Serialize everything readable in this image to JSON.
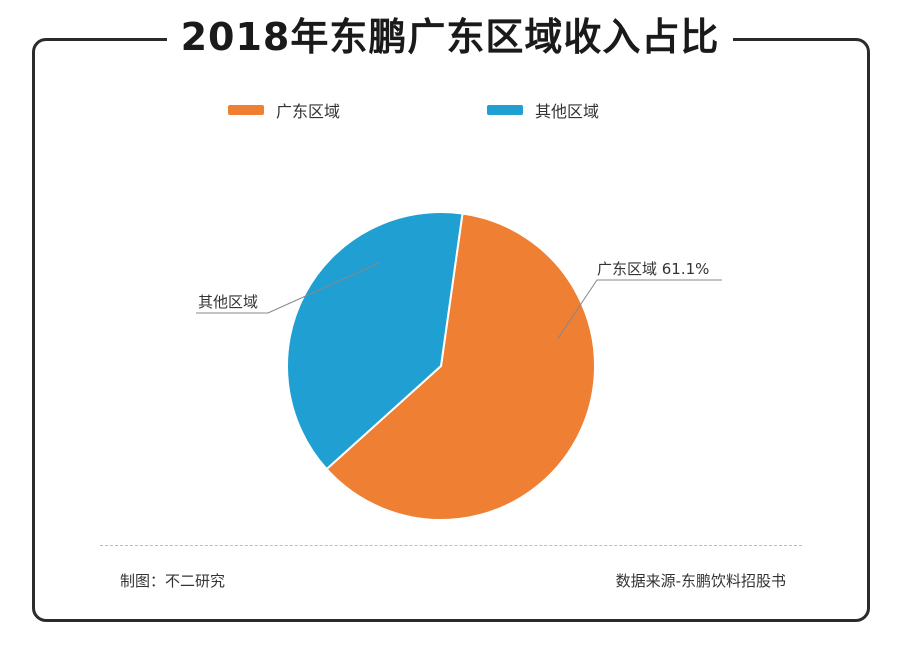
{
  "title": "2018年东鹏广东区域收入占比",
  "colors": {
    "guangdong": "#ee7f33",
    "other": "#1f9fd2"
  },
  "chart_data": {
    "type": "pie",
    "title": "2018年东鹏广东区域收入占比",
    "slices": [
      {
        "name": "广东区域",
        "value": 61.1,
        "color": "#ee7f33",
        "label": "广东区域 61.1%"
      },
      {
        "name": "其他区域",
        "value": 38.9,
        "color": "#1f9fd2",
        "label": "其他区域"
      }
    ],
    "legend": [
      "广东区域",
      "其他区域"
    ],
    "legend_position": "top"
  },
  "footer": {
    "credit": "制图：不二研究",
    "source": "数据来源-东鹏饮料招股书"
  }
}
